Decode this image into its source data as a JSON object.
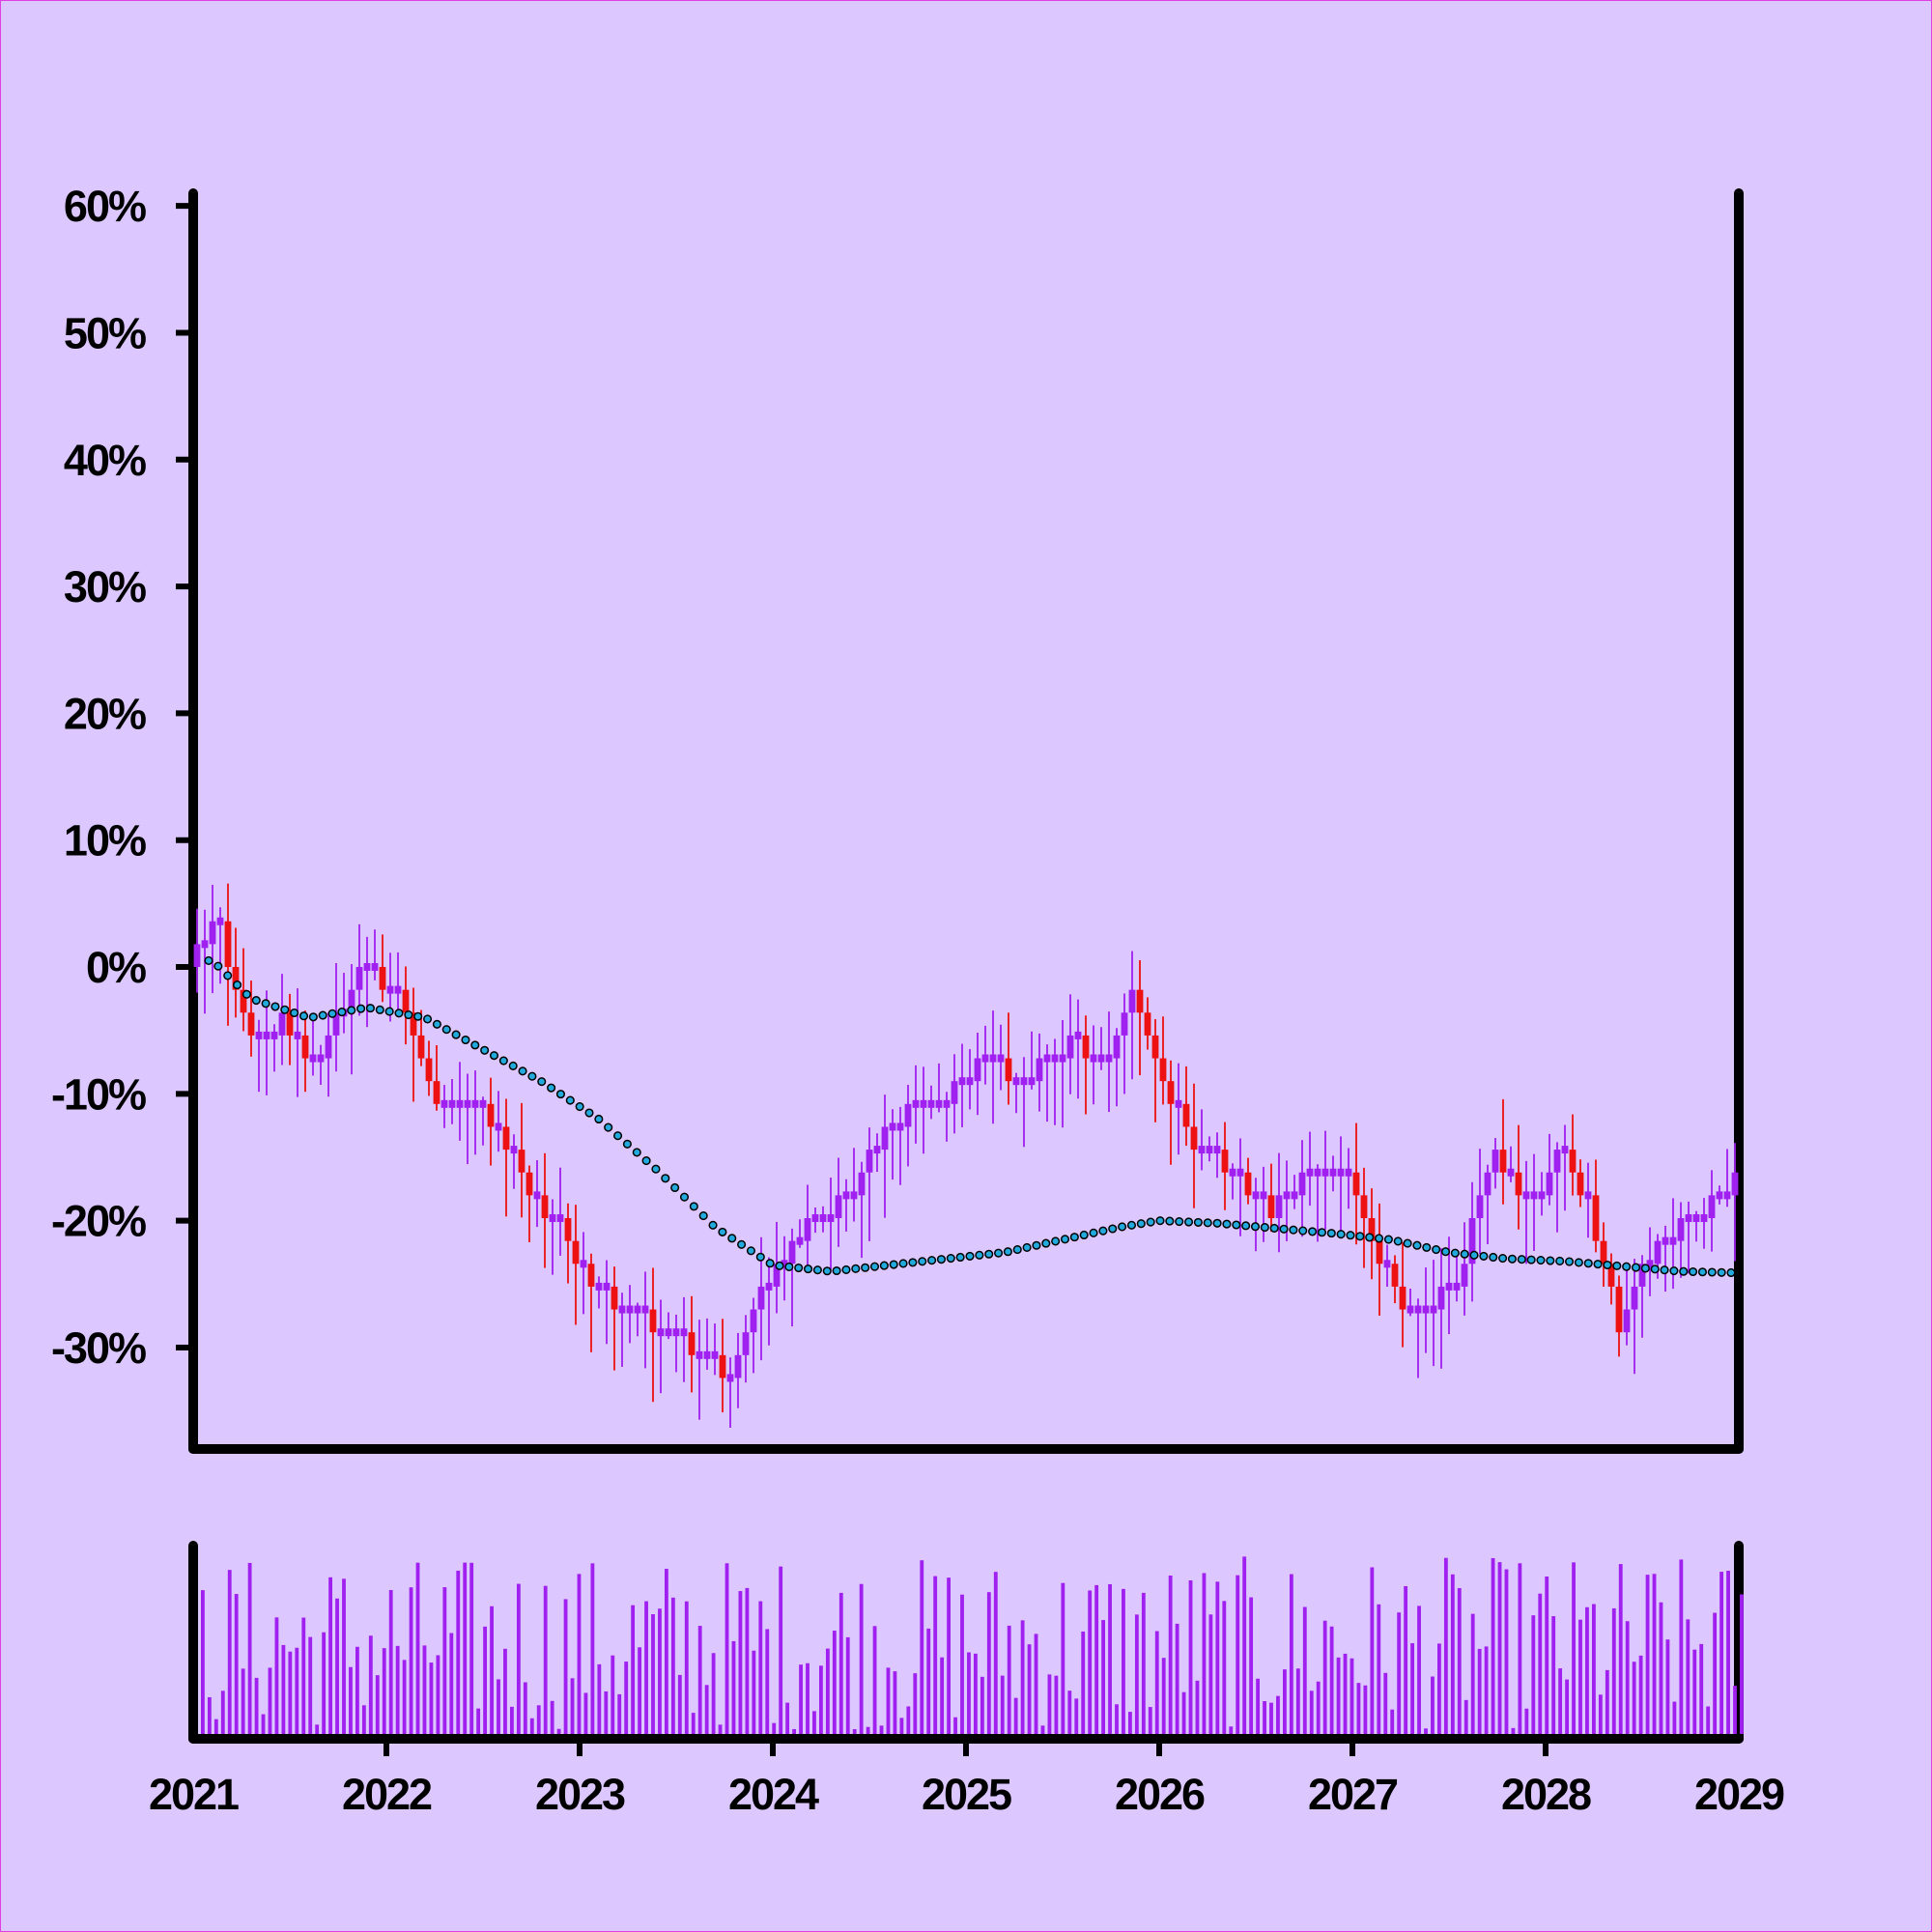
{
  "chart_data": {
    "type": "candlestick",
    "x_axis": {
      "ticks": [
        "2021",
        "2022",
        "2023",
        "2024",
        "2025",
        "2026",
        "2027",
        "2028",
        "2029"
      ],
      "range": [
        2021,
        2029
      ]
    },
    "y_axis": {
      "ticks": [
        "60%",
        "50%",
        "40%",
        "30%",
        "20%",
        "10%",
        "0%",
        "-10%",
        "-20%",
        "-30%"
      ],
      "range": [
        -38,
        61
      ],
      "unit": "%"
    },
    "grid": false,
    "colors": {
      "up": "#a020f0",
      "down": "#ee1111",
      "trend_fill": "#22aadd",
      "trend_stroke": "#000000",
      "volume": "#a020f0",
      "axis": "#000000",
      "background": "#dcc8ff"
    },
    "candle_close_path": [
      [
        2021.0,
        0
      ],
      [
        2021.15,
        3.5
      ],
      [
        2021.33,
        -6
      ],
      [
        2021.5,
        -4
      ],
      [
        2021.65,
        -8
      ],
      [
        2021.9,
        0
      ],
      [
        2022.1,
        -2
      ],
      [
        2022.25,
        -10
      ],
      [
        2022.45,
        -11
      ],
      [
        2022.6,
        -12
      ],
      [
        2022.75,
        -18
      ],
      [
        2022.9,
        -20
      ],
      [
        2023.05,
        -24
      ],
      [
        2023.25,
        -27
      ],
      [
        2023.5,
        -29
      ],
      [
        2023.8,
        -32
      ],
      [
        2023.95,
        -26
      ],
      [
        2024.2,
        -20
      ],
      [
        2024.45,
        -18
      ],
      [
        2024.6,
        -12
      ],
      [
        2024.9,
        -11
      ],
      [
        2025.1,
        -7
      ],
      [
        2025.3,
        -9
      ],
      [
        2025.55,
        -6
      ],
      [
        2025.75,
        -7
      ],
      [
        2025.9,
        -2
      ],
      [
        2026.05,
        -9
      ],
      [
        2026.2,
        -14
      ],
      [
        2026.4,
        -16
      ],
      [
        2026.6,
        -19
      ],
      [
        2026.8,
        -16
      ],
      [
        2027.0,
        -16
      ],
      [
        2027.15,
        -23
      ],
      [
        2027.35,
        -28
      ],
      [
        2027.55,
        -25
      ],
      [
        2027.75,
        -15
      ],
      [
        2027.95,
        -19
      ],
      [
        2028.1,
        -14
      ],
      [
        2028.25,
        -19
      ],
      [
        2028.4,
        -28
      ],
      [
        2028.55,
        -23
      ],
      [
        2028.75,
        -20
      ],
      [
        2029.0,
        -17
      ]
    ],
    "trend_line": [
      [
        2021.0,
        0.5
      ],
      [
        2021.1,
        0.5
      ],
      [
        2021.3,
        -2.5
      ],
      [
        2021.6,
        -4
      ],
      [
        2021.9,
        -3.2
      ],
      [
        2022.2,
        -4
      ],
      [
        2022.5,
        -6.5
      ],
      [
        2022.8,
        -9
      ],
      [
        2023.1,
        -12
      ],
      [
        2023.4,
        -16
      ],
      [
        2023.7,
        -20.5
      ],
      [
        2024.0,
        -23.5
      ],
      [
        2024.3,
        -24
      ],
      [
        2024.6,
        -23.5
      ],
      [
        2024.9,
        -23
      ],
      [
        2025.2,
        -22.5
      ],
      [
        2025.5,
        -21.5
      ],
      [
        2025.8,
        -20.5
      ],
      [
        2026.0,
        -20
      ],
      [
        2026.3,
        -20.2
      ],
      [
        2026.6,
        -20.6
      ],
      [
        2026.9,
        -21
      ],
      [
        2027.2,
        -21.5
      ],
      [
        2027.5,
        -22.5
      ],
      [
        2027.8,
        -23
      ],
      [
        2028.1,
        -23.2
      ],
      [
        2028.4,
        -23.6
      ],
      [
        2028.7,
        -24
      ],
      [
        2028.95,
        -24.1
      ]
    ]
  }
}
